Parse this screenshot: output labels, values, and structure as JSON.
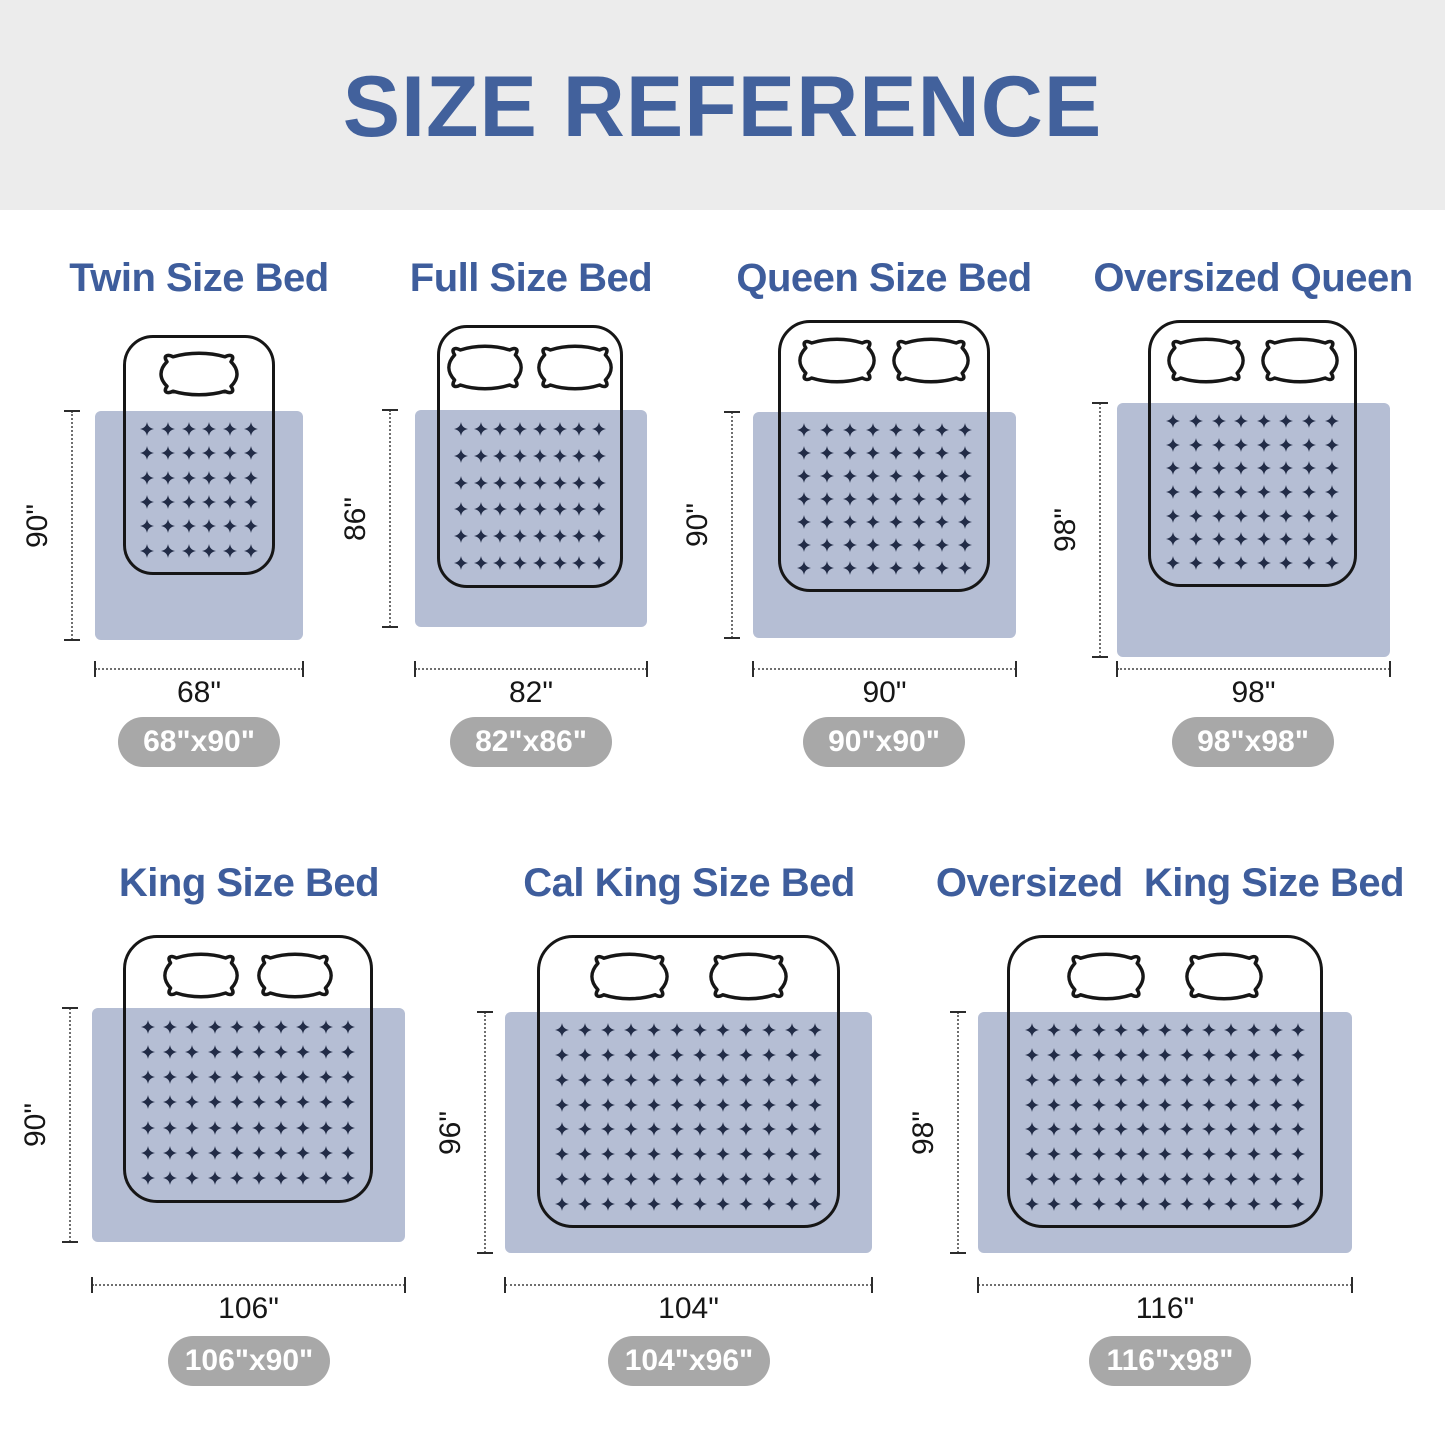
{
  "header": {
    "title": "SIZE REFERENCE"
  },
  "colors": {
    "accent_blue": "#42619c",
    "bed_title_blue": "#3e5d9c",
    "blanket": "#b5bed4",
    "star": "#222c47",
    "bed_outline": "#161616",
    "header_bg": "#ececec",
    "pill_bg": "#a8a8a8",
    "pill_text": "#ffffff",
    "dimension_line": "#6f6f6f"
  },
  "beds": [
    {
      "id": "twin",
      "title": "Twin Size Bed",
      "height_label": "90\"",
      "width_label": "68\"",
      "size_label": "68\"x90\"",
      "pillows": 1,
      "pattern": {
        "cols": 6,
        "rows": 6
      }
    },
    {
      "id": "full",
      "title": "Full Size Bed",
      "height_label": "86\"",
      "width_label": "82\"",
      "size_label": "82\"x86\"",
      "pillows": 2,
      "pattern": {
        "cols": 8,
        "rows": 6
      }
    },
    {
      "id": "queen",
      "title": "Queen Size Bed",
      "height_label": "90\"",
      "width_label": "90\"",
      "size_label": "90\"x90\"",
      "pillows": 2,
      "pattern": {
        "cols": 8,
        "rows": 7
      }
    },
    {
      "id": "oversized-queen",
      "title": "Oversized Queen",
      "height_label": "98\"",
      "width_label": "98\"",
      "size_label": "98\"x98\"",
      "pillows": 2,
      "pattern": {
        "cols": 8,
        "rows": 7
      }
    },
    {
      "id": "king",
      "title": "King Size Bed",
      "height_label": "90\"",
      "width_label": "106\"",
      "size_label": "106\"x90\"",
      "pillows": 2,
      "pattern": {
        "cols": 10,
        "rows": 7
      }
    },
    {
      "id": "cal-king",
      "title": "Cal King Size Bed",
      "height_label": "96\"",
      "width_label": "104\"",
      "size_label": "104\"x96\"",
      "pillows": 2,
      "pattern": {
        "cols": 12,
        "rows": 8
      }
    },
    {
      "id": "oversized-king",
      "title": "Oversized  King Size Bed",
      "height_label": "98\"",
      "width_label": "116\"",
      "size_label": "116\"x98\"",
      "pillows": 2,
      "pattern": {
        "cols": 13,
        "rows": 8
      }
    }
  ]
}
